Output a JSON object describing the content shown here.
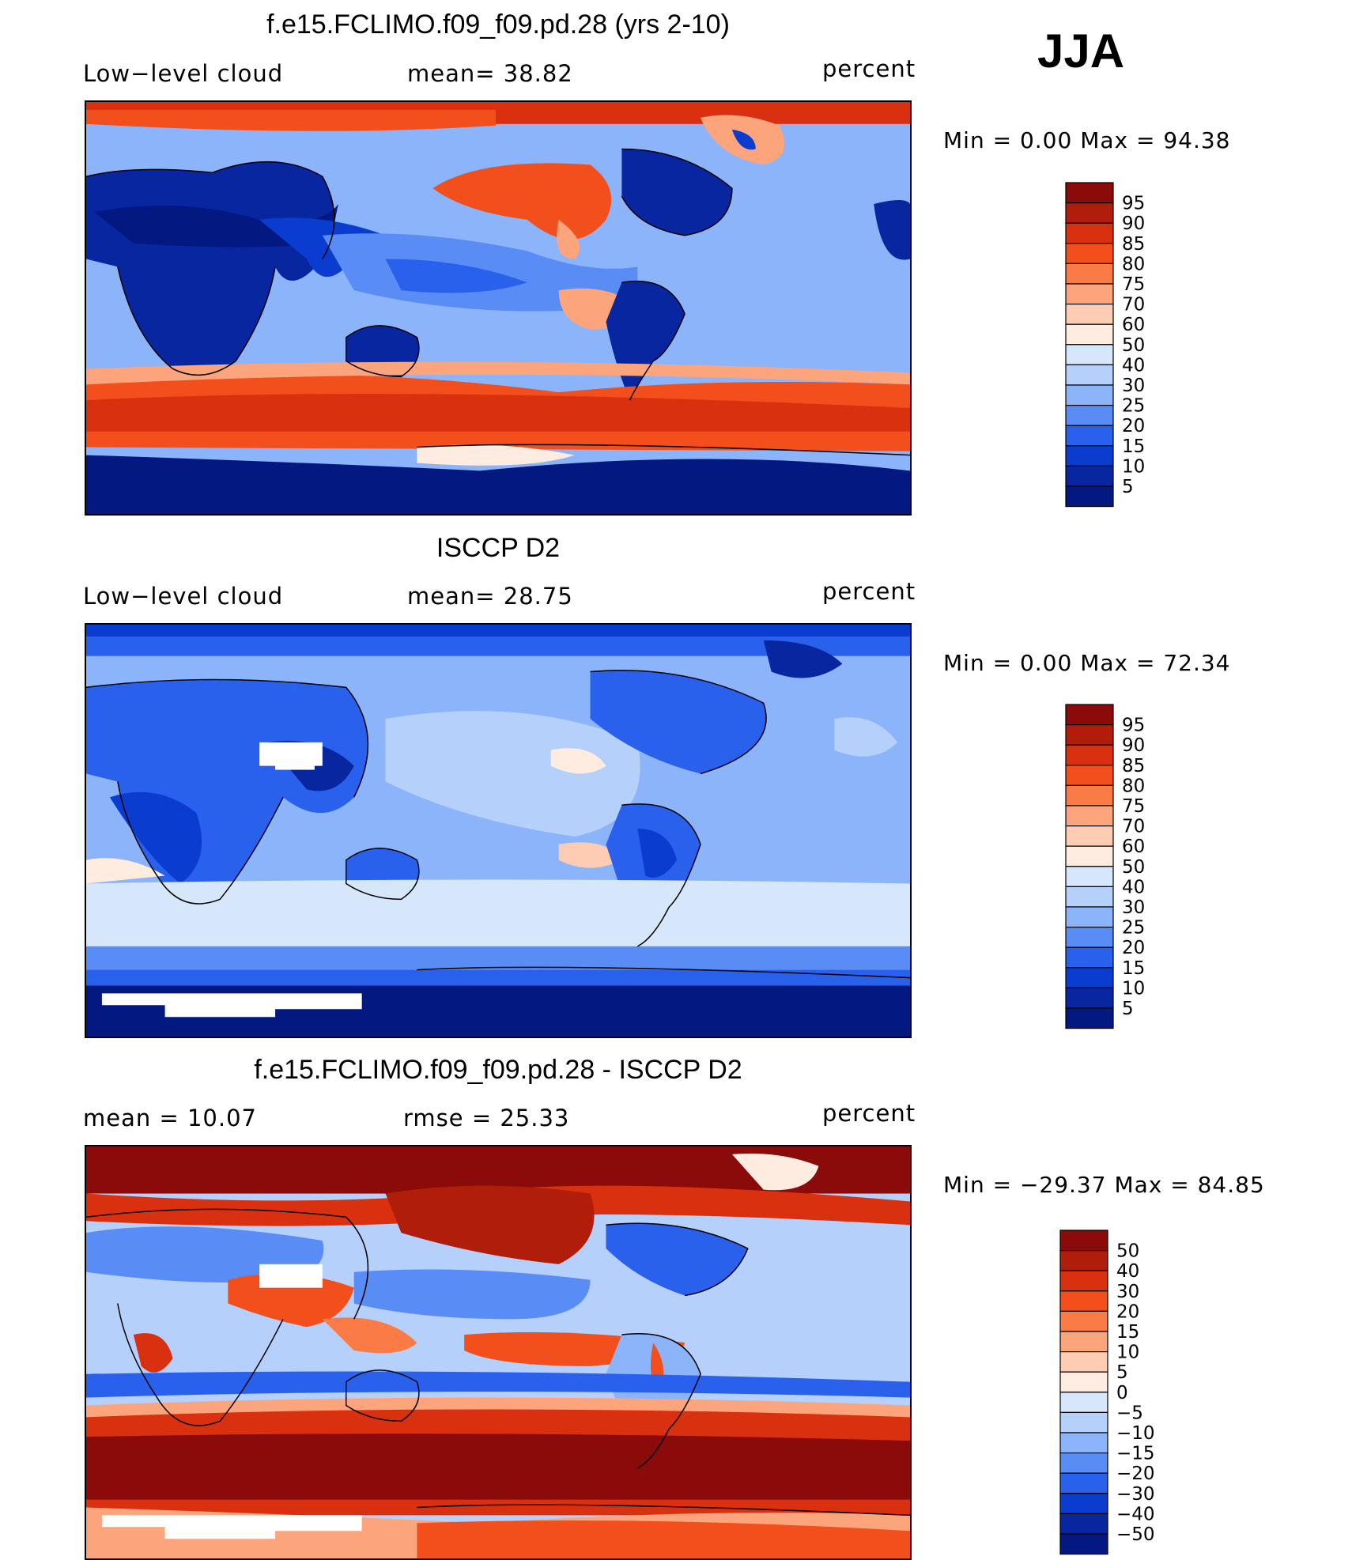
{
  "season": "JJA",
  "panels": [
    {
      "title": "f.e15.FCLIMO.f09_f09.pd.28 (yrs 2-10)",
      "left_label": "Low−level cloud",
      "center_label": "mean=   38.82",
      "right_label": "percent",
      "minmax": "Min  =    0.00  Max  =    94.38",
      "colorbar": {
        "labels": [
          "95",
          "90",
          "85",
          "80",
          "75",
          "70",
          "60",
          "50",
          "40",
          "30",
          "25",
          "20",
          "15",
          "10",
          "5"
        ],
        "colors": [
          "#8b0a0a",
          "#b01d0a",
          "#d9300f",
          "#f24f1c",
          "#fa7b45",
          "#fca47c",
          "#fdccb2",
          "#fdecdf",
          "#d7e7fb",
          "#b5d0fb",
          "#8cb4fa",
          "#5a8cf5",
          "#2a61ec",
          "#0b3cd0",
          "#0726a0",
          "#031880"
        ]
      }
    },
    {
      "title": "ISCCP D2",
      "left_label": "Low−level cloud",
      "center_label": "mean=   28.75",
      "right_label": "percent",
      "minmax": "Min  =    0.00  Max  =    72.34",
      "colorbar": {
        "labels": [
          "95",
          "90",
          "85",
          "80",
          "75",
          "70",
          "60",
          "50",
          "40",
          "30",
          "25",
          "20",
          "15",
          "10",
          "5"
        ],
        "colors": [
          "#8b0a0a",
          "#b01d0a",
          "#d9300f",
          "#f24f1c",
          "#fa7b45",
          "#fca47c",
          "#fdccb2",
          "#fdecdf",
          "#d7e7fb",
          "#b5d0fb",
          "#8cb4fa",
          "#5a8cf5",
          "#2a61ec",
          "#0b3cd0",
          "#0726a0",
          "#031880"
        ]
      }
    },
    {
      "title": "f.e15.FCLIMO.f09_f09.pd.28 - ISCCP D2",
      "left_label": "mean  =    10.07",
      "center_label": "rmse  =    25.33",
      "right_label": "percent",
      "minmax": "Min  = −29.37  Max  =    84.85",
      "colorbar": {
        "labels": [
          "50",
          "40",
          "30",
          "20",
          "15",
          "10",
          "5",
          "0",
          "−5",
          "−10",
          "−15",
          "−20",
          "−30",
          "−40",
          "−50"
        ],
        "colors": [
          "#8b0a0a",
          "#b01d0a",
          "#d9300f",
          "#f24f1c",
          "#fa7b45",
          "#fca47c",
          "#fdccb2",
          "#fdecdf",
          "#d7e7fb",
          "#b5d0fb",
          "#8cb4fa",
          "#5a8cf5",
          "#2a61ec",
          "#0b3cd0",
          "#0726a0",
          "#031880"
        ]
      }
    }
  ]
}
